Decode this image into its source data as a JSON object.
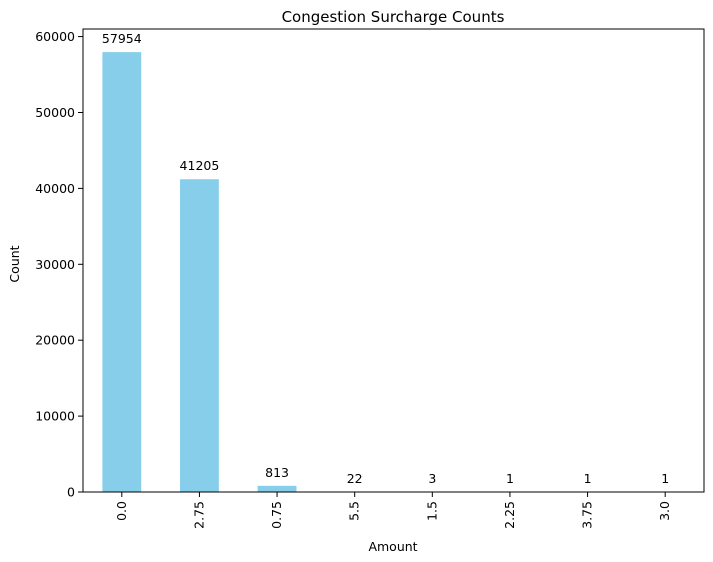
{
  "chart_data": {
    "type": "bar",
    "title": "Congestion Surcharge Counts",
    "xlabel": "Amount",
    "ylabel": "Count",
    "categories": [
      "0.0",
      "2.75",
      "0.75",
      "5.5",
      "1.5",
      "2.25",
      "3.75",
      "3.0"
    ],
    "values": [
      57954,
      41205,
      813,
      22,
      3,
      1,
      1,
      1
    ],
    "data_labels": [
      "57954",
      "41205",
      "813",
      "22",
      "3",
      "1",
      "1",
      "1"
    ],
    "ylim": [
      0,
      61000
    ],
    "yticks": [
      0,
      10000,
      20000,
      30000,
      40000,
      50000,
      60000
    ],
    "ytick_labels": [
      "0",
      "10000",
      "20000",
      "30000",
      "40000",
      "50000",
      "60000"
    ],
    "bar_color": "#87CEEB",
    "grid": false,
    "legend": "none"
  }
}
